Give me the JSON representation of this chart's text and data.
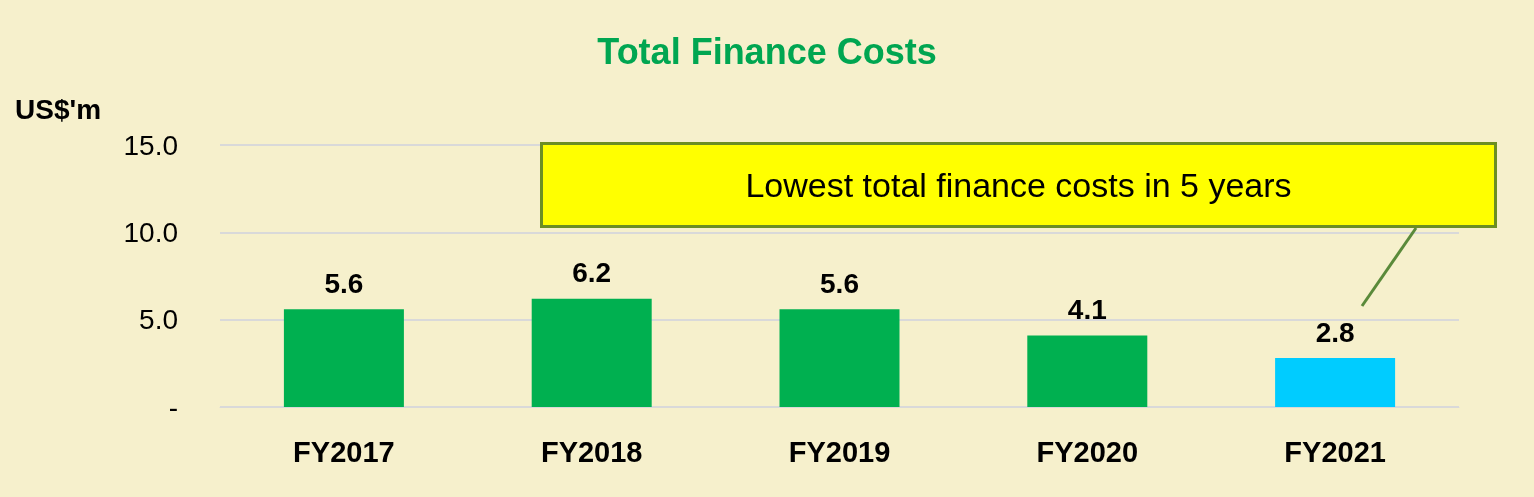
{
  "chart_data": {
    "type": "bar",
    "title": "Total Finance Costs",
    "ylabel": "US$'m",
    "categories": [
      "FY2017",
      "FY2018",
      "FY2019",
      "FY2020",
      "FY2021"
    ],
    "values": [
      5.6,
      6.2,
      5.6,
      4.1,
      2.8
    ],
    "colors": [
      "#00b050",
      "#00b050",
      "#00b050",
      "#00b050",
      "#00ccff"
    ],
    "data_labels": true,
    "ylim": [
      0,
      15
    ],
    "yticks": [
      {
        "value": 0,
        "label": "-"
      },
      {
        "value": 5,
        "label": "5.0"
      },
      {
        "value": 10,
        "label": "10.0"
      },
      {
        "value": 15,
        "label": "15.0"
      }
    ],
    "grid": "y",
    "annotations": [
      "Lowest total finance costs in 5 years"
    ]
  }
}
